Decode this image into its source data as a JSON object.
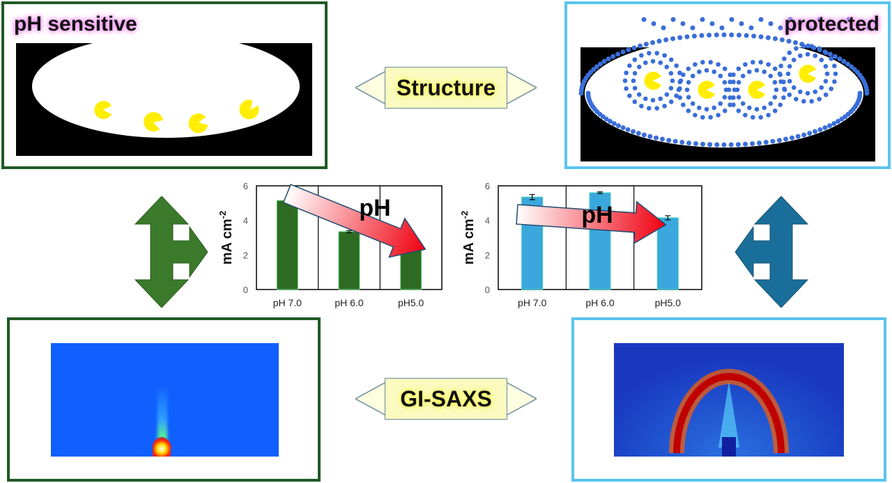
{
  "panels": {
    "top_left_title": "pH sensitive",
    "top_right_title": "protected"
  },
  "arrows": {
    "structure_label": "Structure",
    "gisaxs_label": "GI-SAXS",
    "ph_label": "pH"
  },
  "colors": {
    "green": "#2e6b22",
    "blue": "#3aa8dc",
    "dark_green_border": "#1f5a24",
    "light_blue_border": "#5ac4ee"
  },
  "chart_data": [
    {
      "type": "bar",
      "categories": [
        "pH 7.0",
        "pH 6.0",
        "pH5.0"
      ],
      "values": [
        5.15,
        3.35,
        2.6
      ],
      "errors": [
        0.12,
        0.06,
        0.15
      ],
      "ylabel": "mA cm-2",
      "ylabel_main": "mA cm",
      "ylabel_sup": "-2",
      "ylim": [
        0,
        6
      ],
      "yticks": [
        "0",
        "2",
        "4",
        "6"
      ],
      "color": "#2e6b22"
    },
    {
      "type": "bar",
      "categories": [
        "pH 7.0",
        "pH 6.0",
        "pH5.0"
      ],
      "values": [
        5.35,
        5.6,
        4.15
      ],
      "errors": [
        0.15,
        0.05,
        0.12
      ],
      "ylabel": "mA cm-2",
      "ylabel_main": "mA cm",
      "ylabel_sup": "-2",
      "ylim": [
        0,
        6
      ],
      "yticks": [
        "0",
        "2",
        "4",
        "6"
      ],
      "color": "#3aa8dc"
    }
  ]
}
